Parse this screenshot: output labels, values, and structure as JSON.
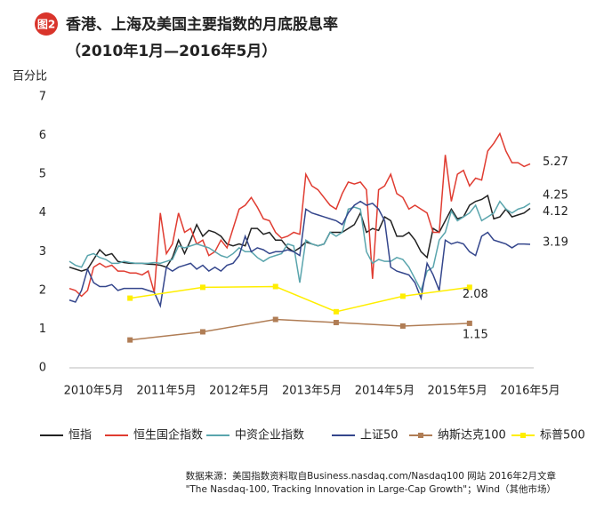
{
  "badge": "图2",
  "chart_data": {
    "type": "line",
    "title": "香港、上海及美国主要指数的月底股息率",
    "subtitle": "（2010年1月—2016年5月）",
    "y_label": "百分比",
    "source": [
      "数据来源：美国指数资料取自Business.nasdaq.com/Nasdaq100 网站 2016年2月文章",
      "\"The Nasdaq-100, Tracking Innovation in Large-Cap Growth\"；Wind（其他市场）"
    ],
    "ylim": [
      0,
      7
    ],
    "yticks": [
      0,
      1,
      2,
      3,
      4,
      5,
      6,
      7
    ],
    "grid": false,
    "legend": "bottom",
    "categories": [
      null,
      null,
      null,
      null,
      "2010年5月",
      null,
      null,
      null,
      null,
      null,
      null,
      null,
      null,
      null,
      null,
      null,
      "2011年5月",
      null,
      null,
      null,
      null,
      null,
      null,
      null,
      null,
      null,
      null,
      null,
      "2012年5月",
      null,
      null,
      null,
      null,
      null,
      null,
      null,
      null,
      null,
      null,
      null,
      "2013年5月",
      null,
      null,
      null,
      null,
      null,
      null,
      null,
      null,
      null,
      null,
      null,
      "2014年5月",
      null,
      null,
      null,
      null,
      null,
      null,
      null,
      null,
      null,
      null,
      null,
      "2015年5月",
      null,
      null,
      null,
      null,
      null,
      null,
      null,
      null,
      null,
      null,
      null,
      "2016年5月"
    ],
    "series": [
      {
        "name": "恒指",
        "color": "#222222",
        "values": [
          2.6,
          2.55,
          2.5,
          2.55,
          2.8,
          3.05,
          2.9,
          2.95,
          2.75,
          2.72,
          2.7,
          2.7,
          2.7,
          2.68,
          2.67,
          2.65,
          2.6,
          2.85,
          3.3,
          2.95,
          3.3,
          3.7,
          3.4,
          3.55,
          3.5,
          3.4,
          3.2,
          3.15,
          3.2,
          3.15,
          3.6,
          3.6,
          3.45,
          3.5,
          3.3,
          3.3,
          3.1,
          3.0,
          3.1,
          3.25,
          3.2,
          3.15,
          3.2,
          3.5,
          3.5,
          3.5,
          3.6,
          3.7,
          4.0,
          3.5,
          3.6,
          3.55,
          3.9,
          3.8,
          3.4,
          3.4,
          3.5,
          3.3,
          3.0,
          2.85,
          3.6,
          3.5,
          3.8,
          4.1,
          3.85,
          3.9,
          4.2,
          4.3,
          4.35,
          4.45,
          3.85,
          3.9,
          4.1,
          3.9,
          3.95,
          4.0,
          4.12
        ]
      },
      {
        "name": "恒生国企指数",
        "color": "#e03c31",
        "values": [
          2.05,
          2.0,
          1.85,
          2.0,
          2.6,
          2.7,
          2.6,
          2.65,
          2.5,
          2.5,
          2.45,
          2.45,
          2.4,
          2.5,
          1.95,
          4.0,
          2.95,
          3.2,
          4.0,
          3.5,
          3.6,
          3.2,
          3.3,
          2.9,
          3.0,
          3.3,
          3.1,
          3.6,
          4.1,
          4.2,
          4.4,
          4.15,
          3.85,
          3.8,
          3.5,
          3.35,
          3.4,
          3.5,
          3.45,
          5.0,
          4.7,
          4.6,
          4.4,
          4.2,
          4.1,
          4.5,
          4.8,
          4.75,
          4.8,
          4.6,
          2.3,
          4.6,
          4.7,
          5.0,
          4.5,
          4.4,
          4.1,
          4.2,
          4.1,
          4.0,
          3.5,
          3.5,
          5.5,
          4.3,
          5.0,
          5.1,
          4.7,
          4.9,
          4.85,
          5.6,
          5.8,
          6.05,
          5.6,
          5.3,
          5.3,
          5.2,
          5.27
        ]
      },
      {
        "name": "中资企业指数",
        "color": "#5aa5ad",
        "values": [
          2.75,
          2.65,
          2.6,
          2.9,
          2.95,
          2.85,
          2.8,
          2.7,
          2.7,
          2.75,
          2.72,
          2.7,
          2.7,
          2.7,
          2.72,
          2.7,
          2.75,
          2.8,
          3.15,
          3.1,
          3.15,
          3.2,
          3.15,
          3.1,
          3.0,
          2.9,
          2.85,
          2.95,
          3.1,
          3.0,
          3.0,
          2.85,
          2.75,
          2.85,
          2.9,
          2.95,
          3.2,
          3.15,
          2.2,
          3.3,
          3.2,
          3.15,
          3.2,
          3.5,
          3.4,
          3.5,
          4.1,
          4.15,
          4.1,
          3.0,
          2.7,
          2.8,
          2.75,
          2.75,
          2.85,
          2.8,
          2.6,
          2.3,
          2.0,
          2.5,
          2.6,
          3.3,
          3.5,
          4.05,
          3.8,
          3.9,
          4.0,
          4.2,
          3.8,
          3.9,
          4.0,
          4.3,
          4.1,
          4.0,
          4.1,
          4.15,
          4.25
        ]
      },
      {
        "name": "上证50",
        "color": "#34468c",
        "values": [
          1.75,
          1.7,
          2.0,
          2.55,
          2.2,
          2.1,
          2.1,
          2.15,
          2.0,
          2.05,
          2.05,
          2.05,
          2.05,
          2.0,
          1.95,
          1.6,
          2.6,
          2.5,
          2.6,
          2.65,
          2.7,
          2.55,
          2.65,
          2.5,
          2.6,
          2.5,
          2.65,
          2.7,
          2.9,
          3.4,
          3.0,
          3.1,
          3.05,
          2.95,
          3.0,
          3.0,
          3.05,
          3.0,
          2.9,
          4.1,
          4.0,
          3.95,
          3.9,
          3.85,
          3.8,
          3.7,
          4.0,
          4.2,
          4.3,
          4.2,
          4.25,
          4.1,
          3.8,
          2.6,
          2.5,
          2.45,
          2.4,
          2.2,
          1.8,
          2.7,
          2.4,
          2.0,
          3.3,
          3.2,
          3.25,
          3.2,
          3.0,
          2.9,
          3.4,
          3.5,
          3.3,
          3.25,
          3.2,
          3.1,
          3.2,
          3.2,
          3.19
        ]
      },
      {
        "name": "纳斯达克100",
        "color": "#b07d55",
        "marker": "square",
        "values": [
          null,
          null,
          null,
          null,
          null,
          null,
          null,
          null,
          null,
          null,
          0.72,
          null,
          null,
          null,
          null,
          null,
          null,
          null,
          null,
          null,
          null,
          null,
          0.93,
          null,
          null,
          null,
          null,
          null,
          null,
          null,
          null,
          null,
          null,
          null,
          1.25,
          null,
          null,
          null,
          null,
          null,
          null,
          null,
          null,
          null,
          1.17,
          null,
          null,
          null,
          null,
          null,
          null,
          null,
          null,
          null,
          null,
          1.08,
          null,
          null,
          null,
          null,
          null,
          null,
          null,
          null,
          null,
          null,
          1.15,
          null,
          null,
          null,
          null,
          null,
          null,
          null,
          null,
          null,
          null
        ]
      },
      {
        "name": "标普500",
        "color": "#ffee00",
        "marker": "square",
        "values": [
          null,
          null,
          null,
          null,
          null,
          null,
          null,
          null,
          null,
          null,
          1.8,
          null,
          null,
          null,
          null,
          null,
          null,
          null,
          null,
          null,
          null,
          null,
          2.08,
          null,
          null,
          null,
          null,
          null,
          null,
          null,
          null,
          null,
          null,
          null,
          2.1,
          null,
          null,
          null,
          null,
          null,
          null,
          null,
          null,
          null,
          1.45,
          null,
          null,
          null,
          null,
          null,
          null,
          null,
          null,
          null,
          null,
          1.85,
          null,
          null,
          null,
          null,
          null,
          null,
          null,
          null,
          null,
          null,
          2.08,
          null,
          null,
          null,
          null,
          null,
          null,
          null,
          null,
          null,
          null
        ]
      }
    ]
  }
}
